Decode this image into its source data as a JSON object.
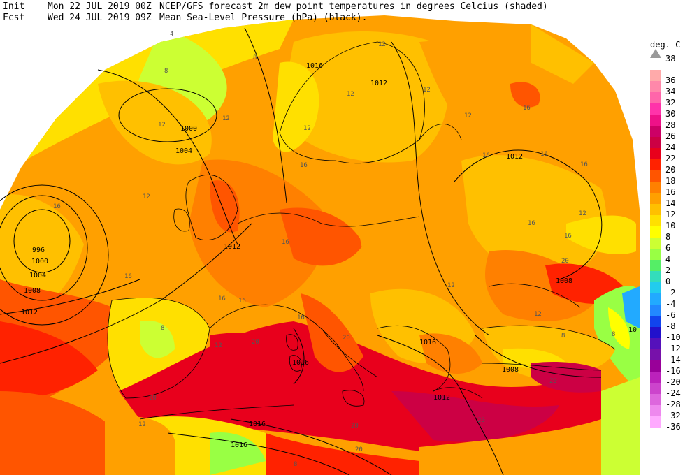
{
  "header": {
    "line1_tag": "Init",
    "line1_date": "Mon 22 JUL 2019 00Z",
    "line1_title": "NCEP/GFS forecast 2m dew point temperatures in degrees Celcius (shaded)",
    "line2_tag": "Fcst",
    "line2_date": "Wed 24 JUL 2019 09Z",
    "line2_title": "Mean Sea-Level Pressure (hPa) (black)."
  },
  "legend": {
    "unit": "deg. C",
    "top_label": "38",
    "items": [
      {
        "label": "36",
        "color": "#ffaaaa"
      },
      {
        "label": "34",
        "color": "#ff88aa"
      },
      {
        "label": "32",
        "color": "#ff66aa"
      },
      {
        "label": "30",
        "color": "#ff33aa"
      },
      {
        "label": "28",
        "color": "#ee1188"
      },
      {
        "label": "26",
        "color": "#cc0066"
      },
      {
        "label": "24",
        "color": "#cc0044"
      },
      {
        "label": "22",
        "color": "#e8001c"
      },
      {
        "label": "20",
        "color": "#ff2200"
      },
      {
        "label": "18",
        "color": "#ff5500"
      },
      {
        "label": "16",
        "color": "#ff8000"
      },
      {
        "label": "14",
        "color": "#ffa000"
      },
      {
        "label": "12",
        "color": "#ffc000"
      },
      {
        "label": "10",
        "color": "#ffe000"
      },
      {
        "label": "8",
        "color": "#ffff00"
      },
      {
        "label": "6",
        "color": "#ccff33"
      },
      {
        "label": "4",
        "color": "#99ff44"
      },
      {
        "label": "2",
        "color": "#55ee66"
      },
      {
        "label": "0",
        "color": "#33ddbb"
      },
      {
        "label": "-2",
        "color": "#22ccee"
      },
      {
        "label": "-4",
        "color": "#22aaff"
      },
      {
        "label": "-6",
        "color": "#2288ff"
      },
      {
        "label": "-8",
        "color": "#1144ee"
      },
      {
        "label": "-10",
        "color": "#2211cc"
      },
      {
        "label": "-12",
        "color": "#5511bb"
      },
      {
        "label": "-14",
        "color": "#7711aa"
      },
      {
        "label": "-16",
        "color": "#990099"
      },
      {
        "label": "-20",
        "color": "#bb22bb"
      },
      {
        "label": "-24",
        "color": "#cc44cc"
      },
      {
        "label": "-28",
        "color": "#dd66dd"
      },
      {
        "label": "-32",
        "color": "#ee88ee"
      },
      {
        "label": "-36",
        "color": "#ffaaff"
      }
    ]
  },
  "isobar_labels": [
    "1016",
    "1012",
    "1000",
    "1004",
    "996",
    "1000",
    "1004",
    "1008",
    "1012",
    "1012",
    "1012",
    "1008",
    "1016",
    "1016",
    "1008",
    "1012",
    "1016",
    "1016",
    "10"
  ],
  "temp_labels": [
    "4",
    "8",
    "8",
    "12",
    "12",
    "12",
    "12",
    "12",
    "12",
    "12",
    "16",
    "16",
    "16",
    "16",
    "16",
    "16",
    "16",
    "16",
    "16",
    "12",
    "20",
    "20",
    "20",
    "20",
    "20",
    "20",
    "20",
    "8",
    "8",
    "8",
    "12",
    "12",
    "16",
    "16",
    "12",
    "12",
    "16",
    "12",
    "16",
    "20",
    "8"
  ]
}
